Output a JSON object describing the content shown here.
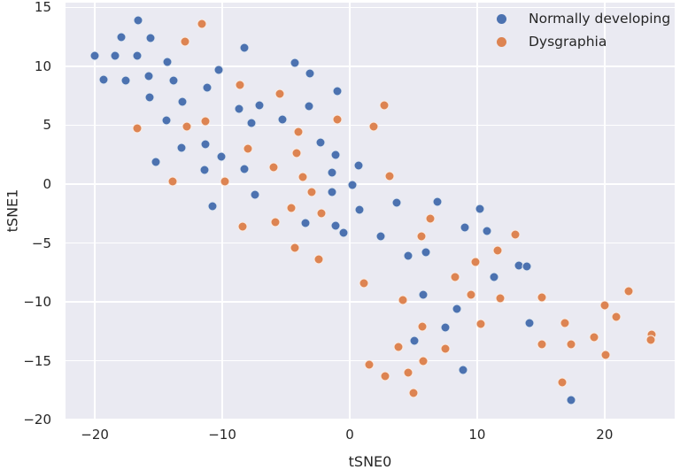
{
  "figure": {
    "background": "#ffffff",
    "plot_background": "#eaeaf2",
    "grid_color": "#ffffff",
    "text_color": "#262626"
  },
  "chart_data": {
    "type": "scatter",
    "title": "",
    "xlabel": "tSNE0",
    "ylabel": "tSNE1",
    "xlim": [
      -22.3,
      25.5
    ],
    "ylim": [
      -19.9,
      15.4
    ],
    "xticks": [
      -20,
      -10,
      0,
      10,
      20
    ],
    "yticks": [
      15,
      10,
      5,
      0,
      -5,
      -10,
      -15,
      -20
    ],
    "grid": true,
    "legend_position": "upper right",
    "series": [
      {
        "name": "Normally developing",
        "color": "#4c72b0",
        "points": [
          [
            -16.6,
            13.9
          ],
          [
            -17.9,
            12.5
          ],
          [
            -15.6,
            12.4
          ],
          [
            -20.0,
            10.9
          ],
          [
            -18.4,
            10.9
          ],
          [
            -16.7,
            10.9
          ],
          [
            -14.3,
            10.4
          ],
          [
            -8.3,
            11.6
          ],
          [
            -10.3,
            9.7
          ],
          [
            -19.3,
            8.9
          ],
          [
            -17.6,
            8.8
          ],
          [
            -15.8,
            9.2
          ],
          [
            -13.8,
            8.8
          ],
          [
            -11.2,
            8.2
          ],
          [
            -15.7,
            7.4
          ],
          [
            -13.1,
            7.0
          ],
          [
            -8.7,
            6.4
          ],
          [
            -7.1,
            6.7
          ],
          [
            -14.4,
            5.4
          ],
          [
            -7.7,
            5.2
          ],
          [
            -4.3,
            10.3
          ],
          [
            -3.1,
            9.4
          ],
          [
            -1.0,
            7.9
          ],
          [
            -3.2,
            6.6
          ],
          [
            -5.3,
            5.5
          ],
          [
            -13.2,
            3.1
          ],
          [
            -11.3,
            3.4
          ],
          [
            -15.2,
            1.9
          ],
          [
            -10.1,
            2.3
          ],
          [
            -11.4,
            1.2
          ],
          [
            -8.3,
            1.3
          ],
          [
            -7.4,
            -0.9
          ],
          [
            -10.8,
            -1.9
          ],
          [
            -2.3,
            3.5
          ],
          [
            -1.1,
            2.5
          ],
          [
            0.7,
            1.6
          ],
          [
            -1.4,
            1.0
          ],
          [
            0.2,
            -0.1
          ],
          [
            -1.4,
            -0.7
          ],
          [
            0.8,
            -2.2
          ],
          [
            3.7,
            -1.6
          ],
          [
            6.9,
            -1.5
          ],
          [
            -3.5,
            -3.3
          ],
          [
            -1.1,
            -3.5
          ],
          [
            -0.5,
            -4.1
          ],
          [
            9.0,
            -3.7
          ],
          [
            2.4,
            -4.4
          ],
          [
            4.6,
            -6.1
          ],
          [
            6.0,
            -5.8
          ],
          [
            10.2,
            -2.1
          ],
          [
            10.8,
            -4.0
          ],
          [
            13.3,
            -6.9
          ],
          [
            13.9,
            -7.0
          ],
          [
            11.3,
            -7.9
          ],
          [
            5.8,
            -9.4
          ],
          [
            8.4,
            -10.6
          ],
          [
            7.5,
            -12.2
          ],
          [
            5.1,
            -13.3
          ],
          [
            8.9,
            -15.8
          ],
          [
            14.1,
            -11.8
          ],
          [
            17.4,
            -18.3
          ]
        ]
      },
      {
        "name": "Dysgraphia",
        "color": "#dd8452",
        "points": [
          [
            -11.6,
            13.6
          ],
          [
            -12.9,
            12.1
          ],
          [
            -8.6,
            8.4
          ],
          [
            -16.7,
            4.7
          ],
          [
            -12.8,
            4.9
          ],
          [
            -11.3,
            5.3
          ],
          [
            -5.5,
            7.7
          ],
          [
            2.7,
            6.7
          ],
          [
            -1.0,
            5.5
          ],
          [
            1.9,
            4.9
          ],
          [
            -4.0,
            4.4
          ],
          [
            -8.0,
            3.0
          ],
          [
            -13.9,
            0.2
          ],
          [
            -9.8,
            0.2
          ],
          [
            -8.4,
            -3.6
          ],
          [
            -4.2,
            2.6
          ],
          [
            -6.0,
            1.4
          ],
          [
            -3.7,
            0.6
          ],
          [
            -3.0,
            -0.7
          ],
          [
            3.1,
            0.7
          ],
          [
            -4.6,
            -2.0
          ],
          [
            -2.2,
            -2.5
          ],
          [
            -5.8,
            -3.2
          ],
          [
            6.3,
            -2.9
          ],
          [
            5.6,
            -4.4
          ],
          [
            -4.3,
            -5.4
          ],
          [
            -2.4,
            -6.4
          ],
          [
            13.0,
            -4.3
          ],
          [
            11.6,
            -5.6
          ],
          [
            9.9,
            -6.6
          ],
          [
            8.3,
            -7.9
          ],
          [
            1.1,
            -8.4
          ],
          [
            9.5,
            -9.4
          ],
          [
            4.2,
            -9.8
          ],
          [
            5.7,
            -12.1
          ],
          [
            3.8,
            -13.8
          ],
          [
            7.5,
            -14.0
          ],
          [
            5.8,
            -15.0
          ],
          [
            1.5,
            -15.3
          ],
          [
            2.8,
            -16.3
          ],
          [
            4.6,
            -16.0
          ],
          [
            5.0,
            -17.7
          ],
          [
            11.8,
            -9.7
          ],
          [
            15.1,
            -9.6
          ],
          [
            21.9,
            -9.1
          ],
          [
            20.0,
            -10.3
          ],
          [
            20.9,
            -11.3
          ],
          [
            10.3,
            -11.9
          ],
          [
            16.9,
            -11.8
          ],
          [
            23.7,
            -12.8
          ],
          [
            23.6,
            -13.2
          ],
          [
            15.1,
            -13.6
          ],
          [
            17.4,
            -13.6
          ],
          [
            19.2,
            -13.0
          ],
          [
            20.1,
            -14.5
          ],
          [
            16.7,
            -16.8
          ]
        ]
      }
    ]
  }
}
